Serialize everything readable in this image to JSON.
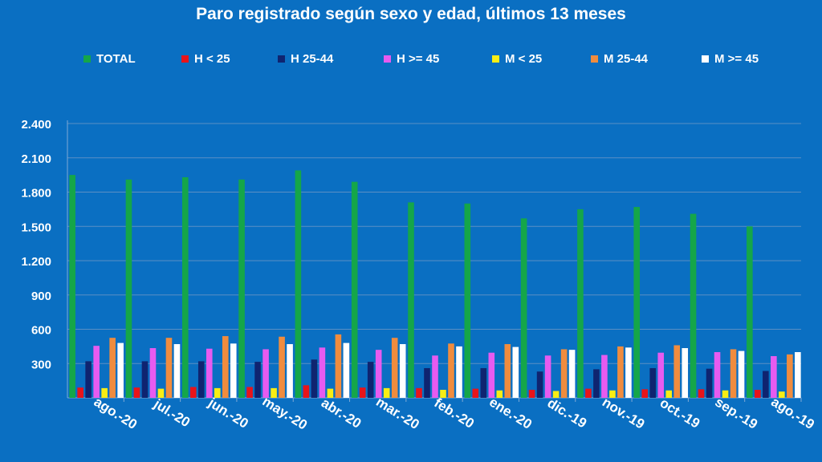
{
  "chart_data": {
    "type": "bar",
    "title": "Paro registrado según sexo y edad, últimos 13 meses",
    "categories": [
      "ago.-20",
      "jul.-20",
      "jun.-20",
      "may.-20",
      "abr.-20",
      "mar.-20",
      "feb.-20",
      "ene.-20",
      "dic.-19",
      "nov.-19",
      "oct.-19",
      "sep.-19",
      "ago.-19"
    ],
    "ylim": [
      0,
      2400
    ],
    "yticks": [
      300,
      600,
      900,
      1200,
      1500,
      1800,
      2100,
      2400
    ],
    "ytick_labels": [
      "300",
      "600",
      "900",
      "1.200",
      "1.500",
      "1.800",
      "2.100",
      "2.400"
    ],
    "grid": true,
    "legend_position": "top",
    "series": [
      {
        "name": "TOTAL",
        "color": "#15a649",
        "values": [
          1950,
          1910,
          1930,
          1910,
          1990,
          1890,
          1710,
          1700,
          1570,
          1650,
          1670,
          1610,
          1500
        ]
      },
      {
        "name": "H < 25",
        "color": "#e8141a",
        "values": [
          90,
          90,
          95,
          95,
          110,
          90,
          85,
          80,
          70,
          80,
          75,
          75,
          70
        ]
      },
      {
        "name": "H 25-44",
        "color": "#0f2470",
        "values": [
          320,
          320,
          320,
          315,
          335,
          315,
          260,
          260,
          230,
          250,
          260,
          255,
          235
        ]
      },
      {
        "name": "H >= 45",
        "color": "#e75bf0",
        "values": [
          455,
          435,
          430,
          425,
          440,
          420,
          370,
          395,
          370,
          375,
          395,
          400,
          365
        ]
      },
      {
        "name": "M < 25",
        "color": "#f8ee14",
        "values": [
          85,
          80,
          85,
          85,
          80,
          85,
          70,
          65,
          60,
          65,
          65,
          65,
          55
        ]
      },
      {
        "name": "M 25-44",
        "color": "#f08c3e",
        "values": [
          525,
          525,
          540,
          535,
          555,
          525,
          475,
          470,
          425,
          450,
          460,
          425,
          380
        ]
      },
      {
        "name": "M >= 45",
        "color": "#ffffff",
        "values": [
          480,
          470,
          475,
          470,
          480,
          470,
          450,
          445,
          420,
          440,
          435,
          410,
          400
        ]
      }
    ]
  }
}
